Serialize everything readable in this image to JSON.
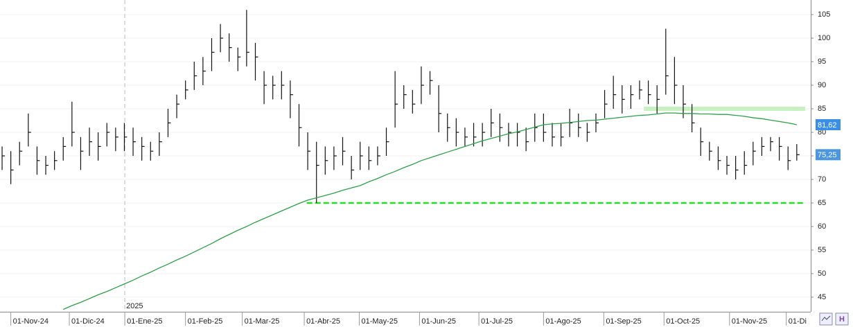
{
  "chart_data": {
    "type": "ohlc",
    "xlim": [
      -0.24,
      92.6
    ],
    "ylim": [
      41.9,
      108.1
    ],
    "yticks": [
      45,
      50,
      55,
      60,
      65,
      70,
      75,
      80,
      85,
      90,
      95,
      100,
      105
    ],
    "xticks": [
      {
        "value": 1,
        "label": "01-Nov-24"
      },
      {
        "value": 7.7,
        "label": "01-Dic-24"
      },
      {
        "value": 14.05,
        "label": "01-Ene-25"
      },
      {
        "value": 21,
        "label": "01-Feb-25"
      },
      {
        "value": 27.5,
        "label": "01-Mar-25"
      },
      {
        "value": 34.6,
        "label": "01-Abr-25"
      },
      {
        "value": 40.9,
        "label": "01-May-25"
      },
      {
        "value": 47.8,
        "label": "01-Jun-25"
      },
      {
        "value": 54.6,
        "label": "01-Jul-25"
      },
      {
        "value": 62,
        "label": "01-Ago-25"
      },
      {
        "value": 68.9,
        "label": "01-Sep-25"
      },
      {
        "value": 75.8,
        "label": "01-Oct-25"
      },
      {
        "value": 83.3,
        "label": "01-Nov-25"
      },
      {
        "value": 89.8,
        "label": "01-Di"
      }
    ],
    "year_marker": {
      "value": 14.05,
      "label": "2025"
    },
    "grid": true,
    "bar_color": "#111111",
    "high": [
      77,
      76,
      78,
      84,
      77,
      75,
      76,
      79,
      86.5,
      79,
      81,
      80,
      82,
      81,
      82,
      81,
      79,
      78,
      80,
      85,
      88,
      91,
      95,
      96,
      100,
      103,
      101,
      98,
      106,
      99,
      93,
      92,
      93,
      91,
      86,
      80,
      78,
      77,
      77,
      79,
      75,
      78,
      77,
      77,
      81,
      93,
      90,
      89,
      94,
      93,
      90,
      84,
      83,
      81,
      82,
      82,
      85,
      84,
      82,
      82,
      81,
      84,
      84,
      82,
      82,
      85,
      84,
      82,
      84,
      89,
      92,
      90,
      90,
      91,
      91,
      90,
      102,
      96,
      90,
      86,
      81,
      78,
      77,
      75,
      75,
      76,
      78,
      79,
      79,
      79,
      77,
      77.5
    ],
    "low": [
      72,
      69,
      73,
      77,
      71,
      71,
      72,
      74,
      77,
      72,
      75,
      74,
      77,
      76,
      76,
      75,
      74,
      74,
      75,
      79,
      83,
      87,
      89,
      90,
      93,
      97,
      95,
      93,
      94,
      91,
      86,
      87,
      87,
      83,
      77,
      72,
      65,
      71,
      72,
      73,
      70,
      72,
      72,
      73,
      75,
      81,
      85,
      84,
      86,
      88,
      80,
      78,
      77,
      77,
      77,
      77,
      79,
      78,
      77,
      77,
      76,
      78,
      78,
      77,
      77,
      79,
      79,
      78,
      80,
      83,
      85,
      84,
      85,
      87,
      86,
      84,
      88,
      86,
      83,
      80,
      75,
      74,
      72,
      71,
      70,
      71,
      73,
      75,
      76,
      74,
      72,
      74
    ],
    "close": [
      75,
      72,
      76,
      80,
      74,
      73,
      74,
      77,
      80,
      76,
      78,
      77,
      80,
      79,
      79,
      78,
      77,
      76,
      78,
      82,
      86,
      89,
      92,
      93,
      97,
      100,
      98,
      96,
      97,
      96,
      90,
      90,
      90,
      88,
      81,
      76,
      73,
      74,
      75,
      76,
      72,
      75,
      74,
      75,
      78,
      86,
      88,
      86,
      90,
      91,
      84,
      81,
      80,
      79,
      79,
      80,
      82,
      81,
      80,
      80,
      78,
      81,
      80,
      79,
      79,
      82,
      81,
      80,
      82,
      86,
      88,
      87,
      88,
      89,
      88,
      87,
      92,
      90,
      86,
      82,
      78,
      76,
      74,
      73,
      72,
      73,
      76,
      77,
      78,
      77,
      74,
      75.25
    ],
    "moving_average": {
      "color": "#2e9e4a",
      "values": [
        null,
        null,
        null,
        null,
        null,
        null,
        null,
        42.4,
        43.2,
        43.9,
        44.7,
        45.5,
        46.2,
        47.0,
        47.8,
        48.6,
        49.5,
        50.3,
        51.2,
        52.0,
        52.9,
        53.7,
        54.6,
        55.5,
        56.4,
        57.4,
        58.3,
        59.2,
        60.0,
        60.9,
        61.7,
        62.5,
        63.3,
        64.1,
        64.9,
        65.6,
        66.1,
        66.6,
        67.1,
        67.7,
        68.2,
        68.7,
        69.5,
        70.2,
        71.0,
        71.7,
        72.5,
        73.2,
        74.0,
        74.6,
        75.2,
        75.8,
        76.4,
        77.0,
        77.6,
        78.2,
        78.7,
        79.2,
        79.7,
        80.1,
        80.6,
        81.1,
        81.6,
        81.8,
        81.9,
        82.1,
        82.3,
        82.5,
        82.6,
        82.8,
        83.0,
        83.2,
        83.4,
        83.6,
        83.7,
        83.9,
        84.1,
        84.1,
        84.0,
        84.0,
        83.9,
        83.9,
        83.8,
        83.8,
        83.6,
        83.4,
        83.1,
        82.9,
        82.6,
        82.3,
        82.0,
        81.62
      ]
    },
    "support_line": {
      "value": 65,
      "color": "#22dd22"
    },
    "resistance_band": {
      "value": 85,
      "color": "#c8f0c0"
    },
    "price_tags": [
      {
        "value": 81.62,
        "label": "81,62",
        "color": "#3a8ee6"
      },
      {
        "value": 75.25,
        "label": "75,25",
        "color": "#4a96e0"
      }
    ]
  }
}
